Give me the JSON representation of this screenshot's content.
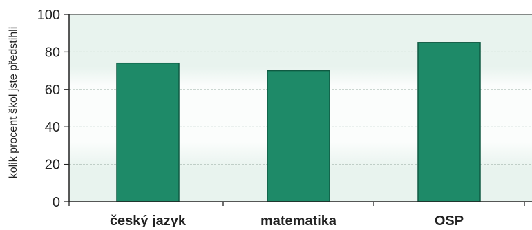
{
  "chart_data": {
    "type": "bar",
    "categories": [
      "český jazyk",
      "matematika",
      "OSP"
    ],
    "values": [
      74,
      70,
      85
    ],
    "ylabel": "kolik procent škol jste předstihli",
    "xlabel": "",
    "ylim": [
      0,
      100
    ],
    "yticks": [
      "0",
      "20",
      "40",
      "60",
      "80",
      "100"
    ],
    "grid": true,
    "colors": {
      "bar": "#1e8a68",
      "bar_edge": "#0f5a42",
      "plot_background": "#e8f3ee",
      "band_background": "#fbfdfc",
      "gridline": "#b9c9c1",
      "axis": "#222222",
      "text": "#222222"
    }
  }
}
